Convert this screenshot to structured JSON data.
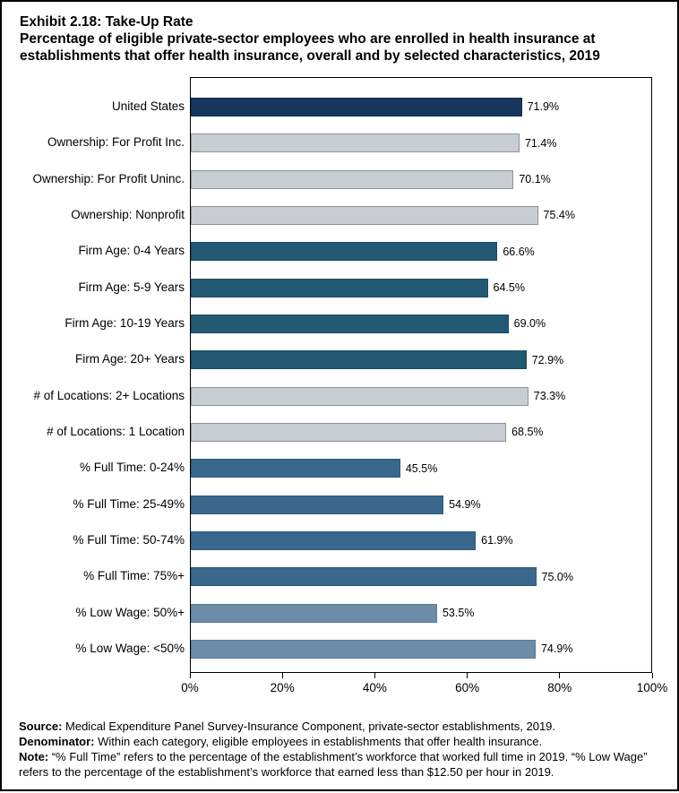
{
  "header": {
    "title": "Exhibit 2.18: Take-Up Rate",
    "subtitle": "Percentage of eligible private-sector employees who are enrolled in health insurance at establishments that offer health insurance, overall and by selected characteristics, 2019"
  },
  "chart_data": {
    "type": "bar",
    "orientation": "horizontal",
    "title": "Exhibit 2.18: Take-Up Rate",
    "xlabel": "",
    "ylabel": "",
    "x_axis": {
      "min": 0,
      "max": 100,
      "tick_labels": [
        "0%",
        "20%",
        "40%",
        "60%",
        "80%",
        "100%"
      ]
    },
    "grid": false,
    "legend": false,
    "bars": [
      {
        "label": "United States",
        "value": 71.9,
        "value_label": "71.9%",
        "group": "overall"
      },
      {
        "label": "Ownership: For Profit Inc.",
        "value": 71.4,
        "value_label": "71.4%",
        "group": "ownership"
      },
      {
        "label": "Ownership: For Profit Uninc.",
        "value": 70.1,
        "value_label": "70.1%",
        "group": "ownership"
      },
      {
        "label": "Ownership: Nonprofit",
        "value": 75.4,
        "value_label": "75.4%",
        "group": "ownership"
      },
      {
        "label": "Firm Age: 0-4 Years",
        "value": 66.6,
        "value_label": "66.6%",
        "group": "firm_age"
      },
      {
        "label": "Firm Age: 5-9 Years",
        "value": 64.5,
        "value_label": "64.5%",
        "group": "firm_age"
      },
      {
        "label": "Firm Age: 10-19 Years",
        "value": 69.0,
        "value_label": "69.0%",
        "group": "firm_age"
      },
      {
        "label": "Firm Age: 20+ Years",
        "value": 72.9,
        "value_label": "72.9%",
        "group": "firm_age"
      },
      {
        "label": "# of Locations: 2+ Locations",
        "value": 73.3,
        "value_label": "73.3%",
        "group": "locations"
      },
      {
        "label": "# of Locations: 1 Location",
        "value": 68.5,
        "value_label": "68.5%",
        "group": "locations"
      },
      {
        "label": "% Full Time: 0-24%",
        "value": 45.5,
        "value_label": "45.5%",
        "group": "full_time"
      },
      {
        "label": "% Full Time: 25-49%",
        "value": 54.9,
        "value_label": "54.9%",
        "group": "full_time"
      },
      {
        "label": "% Full Time: 50-74%",
        "value": 61.9,
        "value_label": "61.9%",
        "group": "full_time"
      },
      {
        "label": "% Full Time: 75%+",
        "value": 75.0,
        "value_label": "75.0%",
        "group": "full_time"
      },
      {
        "label": "% Low Wage: 50%+",
        "value": 53.5,
        "value_label": "53.5%",
        "group": "low_wage"
      },
      {
        "label": "% Low Wage: <50%",
        "value": 74.9,
        "value_label": "74.9%",
        "group": "low_wage"
      }
    ],
    "group_colors": {
      "overall": {
        "fill": "#17375E",
        "border": "#122C4A"
      },
      "ownership": {
        "fill": "#C8CDD4",
        "border": "#8F9296"
      },
      "firm_age": {
        "fill": "#235973",
        "border": "#1B4A61"
      },
      "locations": {
        "fill": "#C8CDD4",
        "border": "#8F9296"
      },
      "full_time": {
        "fill": "#3A688C",
        "border": "#2F5877"
      },
      "low_wage": {
        "fill": "#6C8CA7",
        "border": "#5B7A93"
      }
    }
  },
  "footnotes": [
    {
      "label": "Source:",
      "text": " Medical Expenditure Panel Survey-Insurance Component, private-sector establishments, 2019."
    },
    {
      "label": "Denominator:",
      "text": " Within each category, eligible employees in establishments that offer health insurance."
    },
    {
      "label": "Note:",
      "text": " “% Full Time” refers to the percentage of the establishment’s workforce that worked full time in 2019. “% Low Wage” refers to the percentage of the establishment’s workforce that earned less than $12.50 per hour in 2019."
    }
  ]
}
